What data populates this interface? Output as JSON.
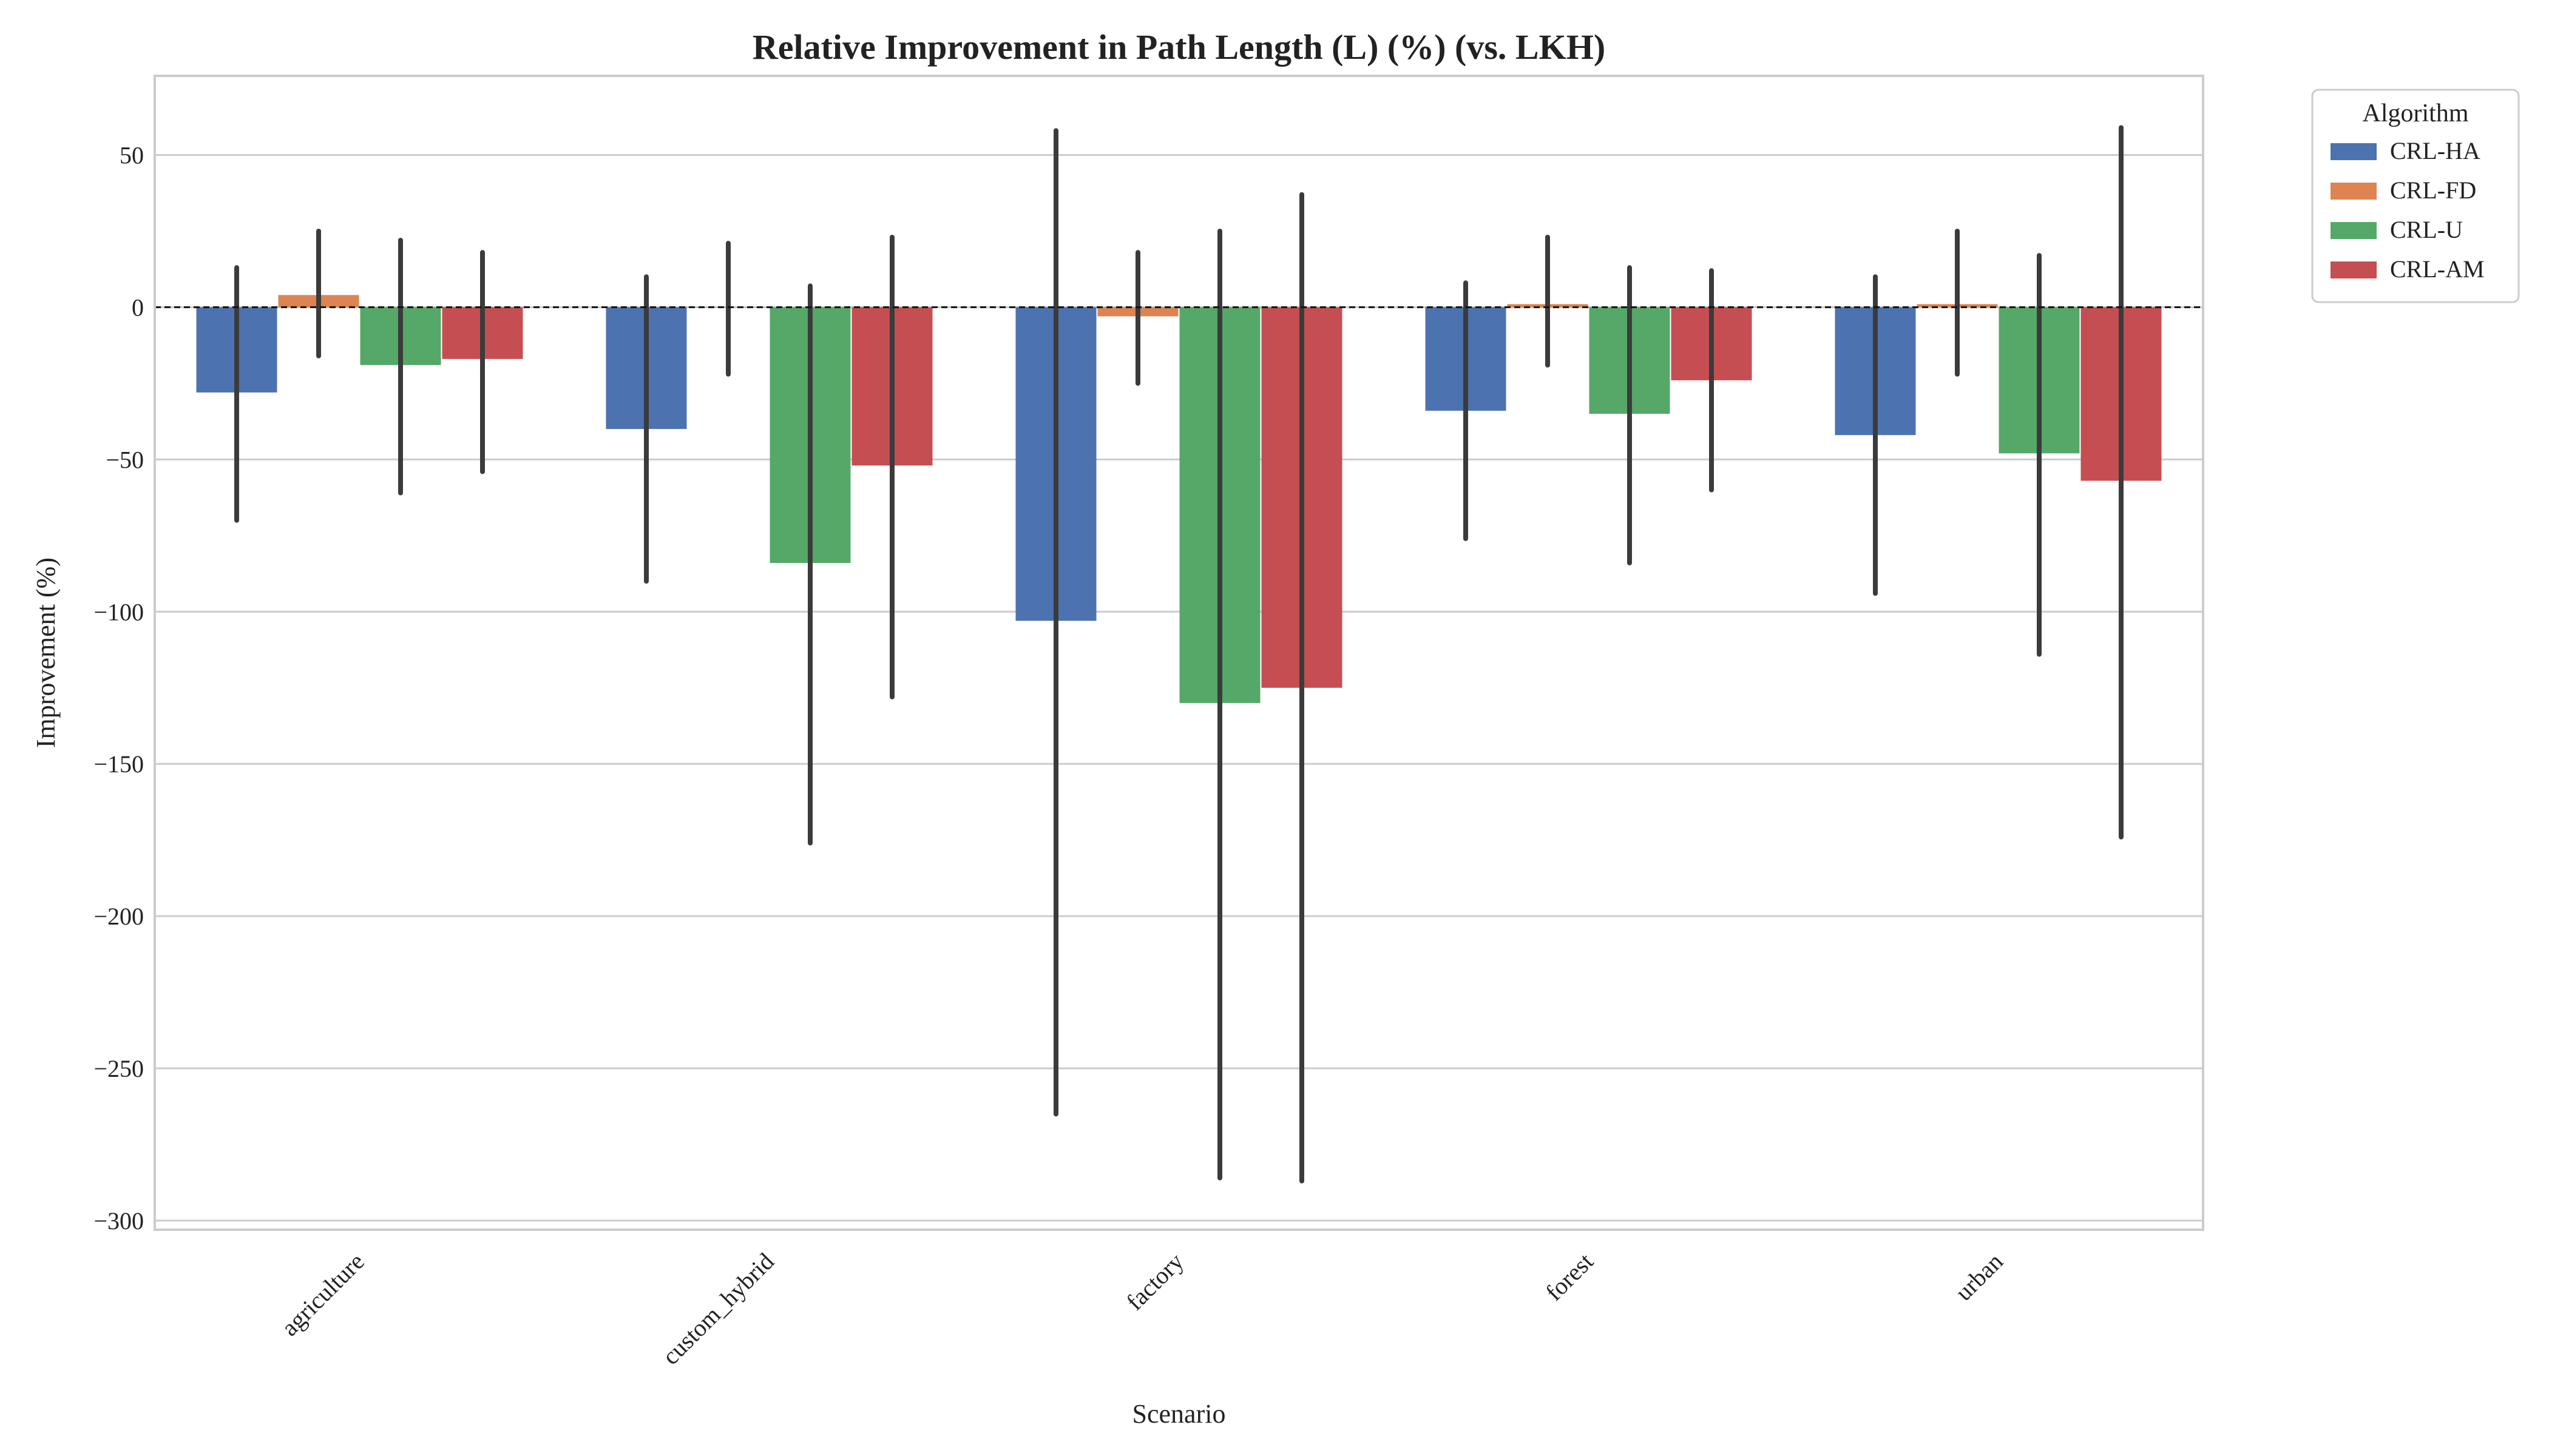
{
  "chart_data": {
    "type": "bar",
    "title": "Relative Improvement in Path Length (L) (%) (vs. LKH)",
    "xlabel": "Scenario",
    "ylabel": "Improvement (%)",
    "categories": [
      "agriculture",
      "custom_hybrid",
      "factory",
      "forest",
      "urban"
    ],
    "ylim": [
      -303,
      76
    ],
    "yticks": [
      50,
      0,
      -50,
      -100,
      -150,
      -200,
      -250,
      -300
    ],
    "ytick_labels": [
      "50",
      "0",
      "−50",
      "−100",
      "−150",
      "−200",
      "−250",
      "−300"
    ],
    "reference_line": 0,
    "grid": "y",
    "legend": {
      "title": "Algorithm",
      "placement": "outside top-right"
    },
    "series": [
      {
        "name": "CRL-HA",
        "color": "#4c72b0",
        "values": [
          -28,
          -40,
          -103,
          -34,
          -42
        ],
        "error_low": [
          -70,
          -90,
          -265,
          -76,
          -94
        ],
        "error_high": [
          13,
          10,
          58,
          8,
          10
        ]
      },
      {
        "name": "CRL-FD",
        "color": "#dd8452",
        "values": [
          4,
          0,
          -3,
          1,
          1
        ],
        "error_low": [
          -16,
          -22,
          -25,
          -19,
          -22
        ],
        "error_high": [
          25,
          21,
          18,
          23,
          25
        ]
      },
      {
        "name": "CRL-U",
        "color": "#55a868",
        "values": [
          -19,
          -84,
          -130,
          -35,
          -48
        ],
        "error_low": [
          -61,
          -176,
          -286,
          -84,
          -114
        ],
        "error_high": [
          22,
          7,
          25,
          13,
          17
        ]
      },
      {
        "name": "CRL-AM",
        "color": "#c44e52",
        "values": [
          -17,
          -52,
          -125,
          -24,
          -57
        ],
        "error_low": [
          -54,
          -128,
          -287,
          -60,
          -174
        ],
        "error_high": [
          18,
          23,
          37,
          12,
          59
        ]
      }
    ]
  }
}
